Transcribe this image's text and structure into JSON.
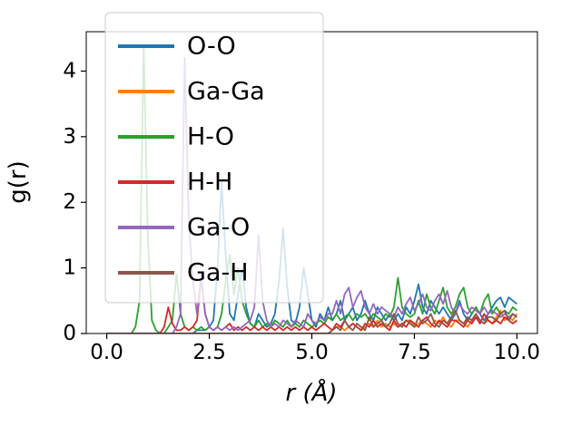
{
  "colors": {
    "background": "#ffffff",
    "axes": "#000000",
    "legend_border": "#cccccc",
    "legend_fill": "rgba(255,255,255,0.8)"
  },
  "chart_data": {
    "type": "line",
    "title": "",
    "xlabel": "r (Å)",
    "ylabel": "g(r)",
    "xlim": [
      -0.5,
      10.5
    ],
    "ylim": [
      0,
      4.6
    ],
    "grid": false,
    "legend_position": "upper left",
    "x_start": 0,
    "x_step": 0.1,
    "xticks": [
      {
        "value": 0,
        "label": "0.0"
      },
      {
        "value": 2.5,
        "label": "2.5"
      },
      {
        "value": 5.0,
        "label": "5.0"
      },
      {
        "value": 7.5,
        "label": "7.5"
      },
      {
        "value": 10.0,
        "label": "10.0"
      }
    ],
    "yticks": [
      {
        "value": 0,
        "label": "0"
      },
      {
        "value": 1,
        "label": "1"
      },
      {
        "value": 2,
        "label": "2"
      },
      {
        "value": 3,
        "label": "3"
      },
      {
        "value": 4,
        "label": "4"
      }
    ],
    "series": [
      {
        "name": "O-O",
        "color": "#1f77b4",
        "values": [
          0,
          0,
          0,
          0,
          0,
          0,
          0,
          0,
          0,
          0,
          0,
          0,
          0,
          0,
          0,
          0,
          0,
          0,
          0,
          0,
          0,
          0,
          0.05,
          0.05,
          0.05,
          0.1,
          0.2,
          1.0,
          2.3,
          1.2,
          0.3,
          0.2,
          0.6,
          1.0,
          0.4,
          0.15,
          0.1,
          0.3,
          0.2,
          0.1,
          0.15,
          0.3,
          0.8,
          1.6,
          0.7,
          0.2,
          0.15,
          0.4,
          1.0,
          0.6,
          0.2,
          0.1,
          0.3,
          0.2,
          0.4,
          0.2,
          0.3,
          0.5,
          0.2,
          0.3,
          0.4,
          0.2,
          0.3,
          0.5,
          0.3,
          0.2,
          0.4,
          0.3,
          0.2,
          0.3,
          0.2,
          0.3,
          0.2,
          0.4,
          0.3,
          0.5,
          0.75,
          0.4,
          0.3,
          0.5,
          0.4,
          0.3,
          0.4,
          0.3,
          0.2,
          0.3,
          0.5,
          0.3,
          0.2,
          0.3,
          0.4,
          0.3,
          0.2,
          0.3,
          0.4,
          0.5,
          0.55,
          0.4,
          0.55,
          0.5,
          0.45
        ]
      },
      {
        "name": "Ga-Ga",
        "color": "#ff7f0e",
        "values": [
          0,
          0,
          0,
          0,
          0,
          0,
          0,
          0,
          0,
          0,
          0,
          0,
          0,
          0,
          0,
          0,
          0,
          0,
          0,
          0,
          0,
          0,
          0,
          0,
          0,
          0,
          0,
          0,
          0,
          0,
          0,
          0,
          0,
          0,
          0,
          0,
          0,
          0,
          0,
          0,
          0,
          0,
          0,
          0,
          0,
          0,
          0,
          0,
          0,
          0,
          0,
          0,
          0,
          0,
          0,
          0.05,
          0.1,
          0.1,
          0.05,
          0.1,
          0.15,
          0.1,
          0.05,
          0.1,
          0.15,
          0.1,
          0.2,
          0.1,
          0.15,
          0.1,
          0.15,
          0.1,
          0.15,
          0.2,
          0.2,
          0.1,
          0.15,
          0.2,
          0.15,
          0.1,
          0.2,
          0.15,
          0.25,
          0.15,
          0.1,
          0.2,
          0.2,
          0.15,
          0.1,
          0.2,
          0.3,
          0.2,
          0.15,
          0.2,
          0.15,
          0.25,
          0.35,
          0.2,
          0.25,
          0.2,
          0.3
        ]
      },
      {
        "name": "H-O",
        "color": "#2ca02c",
        "values": [
          0,
          0,
          0,
          0,
          0,
          0,
          0,
          0.1,
          0.5,
          4.4,
          1.5,
          0.2,
          0.05,
          0,
          0,
          0.1,
          0.2,
          0.9,
          0.3,
          0.1,
          0.05,
          0.1,
          0.05,
          0.1,
          0.05,
          0.1,
          0.05,
          0.1,
          0.3,
          0.8,
          1.2,
          0.6,
          1.0,
          0.5,
          0.3,
          0.15,
          0.1,
          0.2,
          0.1,
          0.15,
          0.1,
          0.2,
          0.15,
          0.1,
          0.2,
          0.1,
          0.15,
          0.1,
          0.2,
          0.15,
          0.1,
          0.15,
          0.2,
          0.15,
          0.25,
          0.2,
          0.3,
          0.2,
          0.25,
          0.3,
          0.2,
          0.3,
          0.25,
          0.3,
          0.2,
          0.3,
          0.25,
          0.2,
          0.3,
          0.25,
          0.4,
          0.85,
          0.4,
          0.3,
          0.25,
          0.3,
          0.5,
          0.3,
          0.6,
          0.4,
          0.3,
          0.5,
          0.7,
          0.4,
          0.3,
          0.4,
          0.6,
          0.7,
          0.4,
          0.3,
          0.4,
          0.3,
          0.5,
          0.6,
          0.3,
          0.4,
          0.3,
          0.35,
          0.3,
          0.4,
          0.35
        ]
      },
      {
        "name": "H-H",
        "color": "#d62728",
        "values": [
          0,
          0,
          0,
          0,
          0,
          0,
          0,
          0,
          0,
          0,
          0,
          0,
          0,
          0,
          0.1,
          0.4,
          0.15,
          0.05,
          0.05,
          0.1,
          0.05,
          0.1,
          0.2,
          0.85,
          0.3,
          0.1,
          0.05,
          0.1,
          0.05,
          0.1,
          0.15,
          0.05,
          0.1,
          0.05,
          0.1,
          0.05,
          0.1,
          0.05,
          0.1,
          0.05,
          0.1,
          0.05,
          0.1,
          0.05,
          0.1,
          0.05,
          0.1,
          0.05,
          0.1,
          0.05,
          0.1,
          0.05,
          0.1,
          0.15,
          0.1,
          0.05,
          0.15,
          0.1,
          0.2,
          0.1,
          0.15,
          0.1,
          0.05,
          0.15,
          0.1,
          0.2,
          0.1,
          0.15,
          0.1,
          0.05,
          0.2,
          0.1,
          0.15,
          0.1,
          0.2,
          0.15,
          0.1,
          0.2,
          0.25,
          0.15,
          0.1,
          0.2,
          0.15,
          0.1,
          0.2,
          0.2,
          0.15,
          0.1,
          0.2,
          0.15,
          0.25,
          0.15,
          0.3,
          0.2,
          0.15,
          0.2,
          0.15,
          0.25,
          0.2,
          0.15,
          0.2
        ]
      },
      {
        "name": "Ga-O",
        "color": "#9467bd",
        "values": [
          0,
          0,
          0,
          0,
          0,
          0,
          0,
          0,
          0,
          0,
          0,
          0,
          0,
          0,
          0,
          0,
          0,
          0.1,
          0.3,
          4.2,
          1.7,
          0.8,
          0.3,
          0.9,
          0.3,
          0.1,
          0.05,
          0.1,
          0.05,
          0.1,
          0.05,
          0.1,
          0.05,
          0.1,
          0.15,
          0.2,
          0.4,
          1.5,
          0.5,
          0.2,
          0.1,
          0.15,
          0.1,
          0.2,
          0.15,
          0.1,
          0.2,
          0.15,
          0.1,
          0.3,
          0.2,
          0.15,
          0.25,
          0.2,
          0.3,
          0.3,
          0.5,
          0.3,
          0.6,
          0.7,
          0.4,
          0.55,
          0.65,
          0.4,
          0.3,
          0.45,
          0.3,
          0.4,
          0.35,
          0.3,
          0.25,
          0.4,
          0.3,
          0.45,
          0.55,
          0.35,
          0.45,
          0.6,
          0.4,
          0.35,
          0.5,
          0.6,
          0.45,
          0.65,
          0.4,
          0.3,
          0.45,
          0.35,
          0.3,
          0.4,
          0.35,
          0.3,
          0.4,
          0.3,
          0.35,
          0.3,
          0.25,
          0.3,
          0.25,
          0.3,
          0.25
        ]
      },
      {
        "name": "Ga-H",
        "color": "#8c564b",
        "values": [
          0,
          0,
          0,
          0,
          0,
          0,
          0,
          0,
          0,
          0,
          0,
          0,
          0,
          0,
          0,
          0,
          0,
          0,
          0,
          0,
          0,
          0,
          0,
          0,
          0,
          0,
          0,
          0,
          0,
          0,
          0,
          0,
          0,
          0,
          0,
          0,
          0,
          0,
          0,
          0,
          0,
          0,
          0,
          0,
          0,
          0,
          0,
          0,
          0,
          0,
          0,
          0,
          0,
          0,
          0,
          0.05,
          0.1,
          0.05,
          0.2,
          0.1,
          0.05,
          0.15,
          0.1,
          0.05,
          0.25,
          0.1,
          0.15,
          0.2,
          0.1,
          0.15,
          0.3,
          0.15,
          0.1,
          0.2,
          0.15,
          0.1,
          0.25,
          0.15,
          0.2,
          0.3,
          0.15,
          0.1,
          0.2,
          0.15,
          0.25,
          0.35,
          0.2,
          0.15,
          0.25,
          0.2,
          0.3,
          0.2,
          0.15,
          0.25,
          0.25,
          0.2,
          0.3,
          0.35,
          0.2,
          0.3,
          0.25
        ]
      }
    ]
  }
}
